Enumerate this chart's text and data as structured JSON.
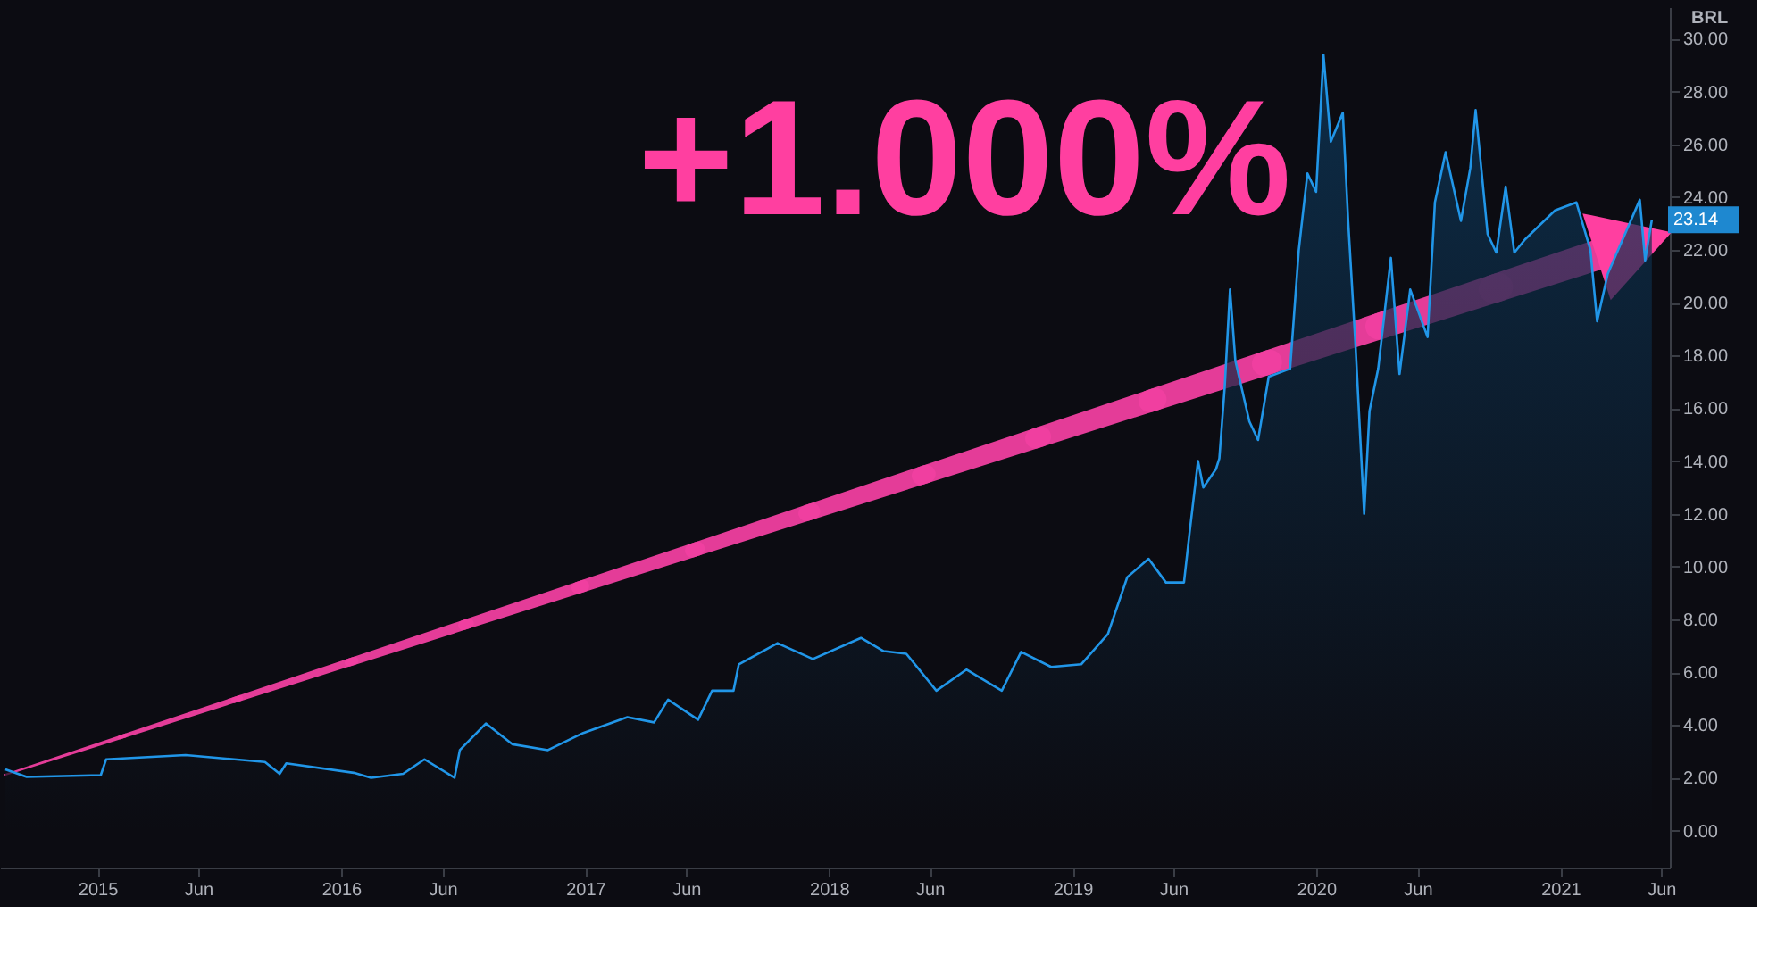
{
  "chart_data": {
    "type": "area",
    "x": [
      "2014-08-16",
      "2014-09-17",
      "2015-01-06",
      "2015-01-14",
      "2015-05-13",
      "2015-09-09",
      "2015-10-01",
      "2015-10-11",
      "2016-01-20",
      "2016-02-15",
      "2016-04-03",
      "2016-05-05",
      "2016-06-19",
      "2016-06-27",
      "2016-08-05",
      "2016-09-14",
      "2016-11-06",
      "2016-12-29",
      "2017-03-05",
      "2017-04-14",
      "2017-05-05",
      "2017-06-19",
      "2017-07-10",
      "2017-08-11",
      "2017-08-19",
      "2017-10-16",
      "2017-12-08",
      "2018-02-18",
      "2018-03-24",
      "2018-04-27",
      "2018-06-11",
      "2018-07-26",
      "2018-09-17",
      "2018-10-16",
      "2018-11-30",
      "2019-01-14",
      "2019-02-23",
      "2019-03-24",
      "2019-04-25",
      "2019-05-21",
      "2019-06-17",
      "2019-06-25",
      "2019-07-08",
      "2019-07-16",
      "2019-08-04",
      "2019-08-09",
      "2019-08-17",
      "2019-08-25",
      "2019-09-02",
      "2019-09-23",
      "2019-10-06",
      "2019-10-22",
      "2019-11-23",
      "2019-12-06",
      "2019-12-19",
      "2020-01-01",
      "2020-01-12",
      "2020-01-23",
      "2020-02-10",
      "2020-02-18",
      "2020-02-29",
      "2020-03-13",
      "2020-03-21",
      "2020-04-03",
      "2020-04-22",
      "2020-05-05",
      "2020-05-21",
      "2020-06-16",
      "2020-06-27",
      "2020-07-13",
      "2020-08-05",
      "2020-08-19",
      "2020-08-27",
      "2020-09-14",
      "2020-09-27",
      "2020-10-11",
      "2020-10-24",
      "2020-11-09",
      "2020-12-24",
      "2021-01-25",
      "2021-02-15",
      "2021-02-25",
      "2021-03-13",
      "2021-04-30",
      "2021-05-08",
      "2021-05-18"
    ],
    "series": [
      {
        "color": "#2196e8",
        "values": [
          2.32,
          2.03,
          2.1,
          2.7,
          2.86,
          2.6,
          2.15,
          2.55,
          2.19,
          2.0,
          2.15,
          2.7,
          2.0,
          3.05,
          4.06,
          3.27,
          3.05,
          3.7,
          4.3,
          4.1,
          4.96,
          4.2,
          5.3,
          5.3,
          6.3,
          7.1,
          6.5,
          7.3,
          6.8,
          6.7,
          5.3,
          6.1,
          5.3,
          6.77,
          6.2,
          6.3,
          7.45,
          9.6,
          10.3,
          9.4,
          9.4,
          11.2,
          14.0,
          13.0,
          13.7,
          14.1,
          16.8,
          20.5,
          17.8,
          15.5,
          14.8,
          17.2,
          17.5,
          22.0,
          24.9,
          24.2,
          29.4,
          26.1,
          27.2,
          23.1,
          18.4,
          12.0,
          15.9,
          17.5,
          21.7,
          17.3,
          20.5,
          18.7,
          23.8,
          25.7,
          23.1,
          25.1,
          27.3,
          22.6,
          21.9,
          24.4,
          21.9,
          22.4,
          23.5,
          23.8,
          22.0,
          19.3,
          21.1,
          23.9,
          21.6,
          23.14
        ]
      }
    ],
    "xlim": [
      "2014-08-08",
      "2021-06-14"
    ],
    "xticks": [
      {
        "value": "2015-01-01",
        "label": "2015"
      },
      {
        "value": "2015-06-01",
        "label": "Jun"
      },
      {
        "value": "2016-01-01",
        "label": "2016"
      },
      {
        "value": "2016-06-01",
        "label": "Jun"
      },
      {
        "value": "2017-01-01",
        "label": "2017"
      },
      {
        "value": "2017-06-01",
        "label": "Jun"
      },
      {
        "value": "2018-01-01",
        "label": "2018"
      },
      {
        "value": "2018-06-01",
        "label": "Jun"
      },
      {
        "value": "2019-01-01",
        "label": "2019"
      },
      {
        "value": "2019-06-01",
        "label": "Jun"
      },
      {
        "value": "2020-01-01",
        "label": "2020"
      },
      {
        "value": "2020-06-01",
        "label": "Jun"
      },
      {
        "value": "2021-01-01",
        "label": "2021"
      },
      {
        "value": "2021-06-01",
        "label": "Jun"
      }
    ],
    "ylim": [
      -1.4,
      31.2
    ],
    "yticks": [
      {
        "value": 0,
        "label": "0.00"
      },
      {
        "value": 2,
        "label": "2.00"
      },
      {
        "value": 4,
        "label": "4.00"
      },
      {
        "value": 6,
        "label": "6.00"
      },
      {
        "value": 8,
        "label": "8.00"
      },
      {
        "value": 10,
        "label": "10.00"
      },
      {
        "value": 12,
        "label": "12.00"
      },
      {
        "value": 14,
        "label": "14.00"
      },
      {
        "value": 16,
        "label": "16.00"
      },
      {
        "value": 18,
        "label": "18.00"
      },
      {
        "value": 20,
        "label": "20.00"
      },
      {
        "value": 22,
        "label": "22.00"
      },
      {
        "value": 24,
        "label": "24.00"
      },
      {
        "value": 26,
        "label": "26.00"
      },
      {
        "value": 28,
        "label": "28.00"
      },
      {
        "value": 30,
        "label": "30.00"
      }
    ],
    "ylabel": "BRL",
    "annotations": [
      "+1.000%",
      "23.14"
    ],
    "grid": false
  }
}
